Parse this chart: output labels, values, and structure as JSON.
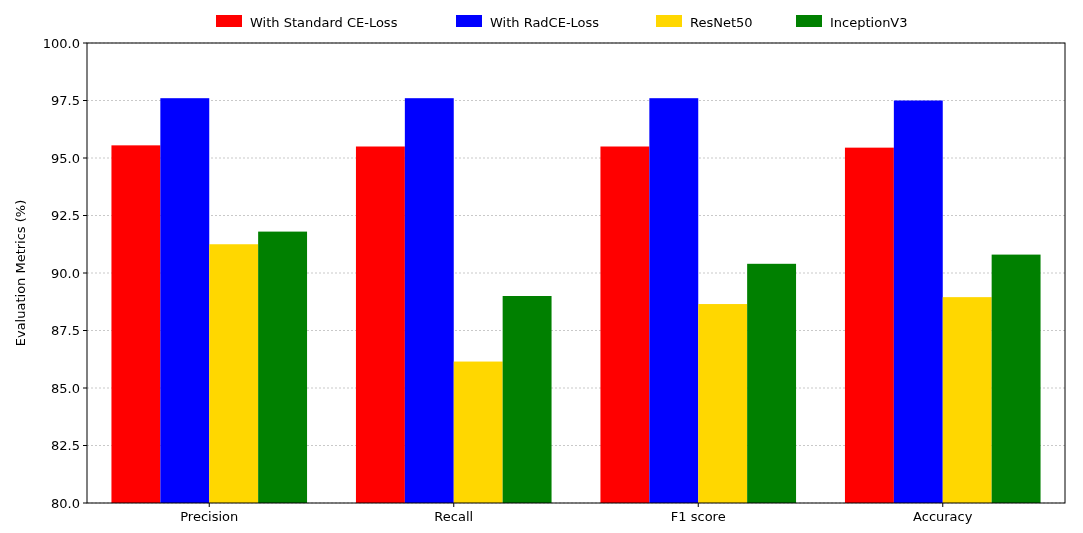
{
  "chart_data": {
    "type": "bar",
    "ylabel": "Evaluation Metrics (%)",
    "categories": [
      "Precision",
      "Recall",
      "F1 score",
      "Accuracy"
    ],
    "series": [
      {
        "name": "With Standard CE-Loss",
        "color": "#ff0000",
        "values": [
          95.55,
          95.5,
          95.5,
          95.45
        ]
      },
      {
        "name": "With RadCE-Loss",
        "color": "#0000ff",
        "values": [
          97.6,
          97.6,
          97.6,
          97.5
        ]
      },
      {
        "name": "ResNet50",
        "color": "#ffd700",
        "values": [
          91.25,
          86.15,
          88.65,
          88.95
        ]
      },
      {
        "name": "InceptionV3",
        "color": "#008000",
        "values": [
          91.8,
          89.0,
          90.4,
          90.8
        ]
      }
    ],
    "ylim": [
      80,
      100
    ],
    "yticks": [
      {
        "value": 80,
        "label": "80.0"
      },
      {
        "value": 82.5,
        "label": "82.5"
      },
      {
        "value": 85,
        "label": "85.0"
      },
      {
        "value": 87.5,
        "label": "87.5"
      },
      {
        "value": 90,
        "label": "90.0"
      },
      {
        "value": 92.5,
        "label": "92.5"
      },
      {
        "value": 95,
        "label": "95.0"
      },
      {
        "value": 97.5,
        "label": "97.5"
      },
      {
        "value": 100,
        "label": "100.0"
      }
    ],
    "grid": "y",
    "legend": "top"
  }
}
